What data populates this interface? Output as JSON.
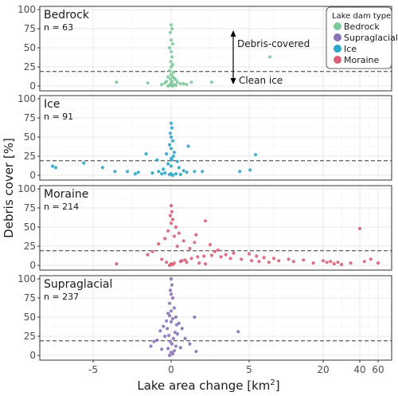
{
  "chart_data": {
    "type": "scatter",
    "xlabel": "Lake area change [km²]",
    "ylabel": "Debris cover [%]",
    "x_ticks": [
      -5,
      0,
      5,
      20,
      40,
      60
    ],
    "y_ticks": [
      0,
      25,
      50,
      75,
      100
    ],
    "ylim": [
      0,
      100
    ],
    "threshold": 19,
    "grid": true,
    "legend": {
      "title": "Lake dam type",
      "placement": "top-right",
      "items": [
        "Bedrock",
        "Supraglacial",
        "Ice",
        "Moraine"
      ]
    },
    "colors": {
      "Bedrock": "#7fc99a",
      "Supraglacial": "#8a73b8",
      "Ice": "#2ea7c8",
      "Moraine": "#d86078"
    },
    "annotation": {
      "upper": "Debris-covered",
      "lower": "Clean ice"
    },
    "panels": [
      {
        "name": "Bedrock",
        "n_label": "n = 63",
        "points": [
          [
            0,
            80
          ],
          [
            0.05,
            75
          ],
          [
            -0.05,
            70
          ],
          [
            0,
            60
          ],
          [
            0.1,
            55
          ],
          [
            -0.1,
            50
          ],
          [
            0,
            45
          ],
          [
            0.05,
            38
          ],
          [
            -0.02,
            32
          ],
          [
            0.1,
            28
          ],
          [
            0,
            25
          ],
          [
            -0.1,
            20
          ],
          [
            0.15,
            18
          ],
          [
            0,
            15
          ],
          [
            -0.2,
            12
          ],
          [
            0.2,
            10
          ],
          [
            0.3,
            8
          ],
          [
            -0.3,
            6
          ],
          [
            0.4,
            5
          ],
          [
            -0.4,
            4
          ],
          [
            0.6,
            3
          ],
          [
            -0.6,
            2
          ],
          [
            0.8,
            3
          ],
          [
            1.0,
            2
          ],
          [
            1.3,
            5
          ],
          [
            2.6,
            5
          ],
          [
            -3.5,
            5
          ],
          [
            -1.5,
            4
          ],
          [
            9.2,
            38
          ],
          [
            0,
            1
          ],
          [
            0.1,
            0
          ],
          [
            -0.1,
            1
          ],
          [
            0.2,
            2
          ],
          [
            0,
            4
          ],
          [
            0.05,
            6
          ],
          [
            -0.05,
            9
          ],
          [
            0.1,
            12
          ],
          [
            0.3,
            1
          ],
          [
            -0.2,
            0
          ]
        ]
      },
      {
        "name": "Ice",
        "n_label": "n = 91",
        "points": [
          [
            0,
            68
          ],
          [
            0.05,
            62
          ],
          [
            -0.05,
            55
          ],
          [
            0,
            50
          ],
          [
            0.1,
            45
          ],
          [
            -0.1,
            40
          ],
          [
            1.1,
            38
          ],
          [
            0,
            35
          ],
          [
            0.2,
            30
          ],
          [
            -0.3,
            28
          ],
          [
            -1.6,
            28
          ],
          [
            0.15,
            25
          ],
          [
            -0.9,
            20
          ],
          [
            0.4,
            18
          ],
          [
            -0.2,
            15
          ],
          [
            0,
            12
          ],
          [
            0.5,
            10
          ],
          [
            -0.5,
            8
          ],
          [
            0.8,
            6
          ],
          [
            -0.8,
            5
          ],
          [
            1.0,
            4
          ],
          [
            -1.2,
            3
          ],
          [
            1.5,
            5
          ],
          [
            2.0,
            5
          ],
          [
            -2.1,
            4
          ],
          [
            -2.3,
            2
          ],
          [
            -2.8,
            5
          ],
          [
            -3.6,
            5
          ],
          [
            -4.4,
            10
          ],
          [
            -5.6,
            16
          ],
          [
            -7.6,
            12
          ],
          [
            -7.4,
            10
          ],
          [
            4.4,
            5
          ],
          [
            5.2,
            7
          ],
          [
            6.3,
            27
          ],
          [
            0,
            2
          ],
          [
            0.1,
            0
          ],
          [
            -0.1,
            1
          ],
          [
            0.3,
            2
          ],
          [
            -0.4,
            3
          ],
          [
            0.6,
            1
          ],
          [
            -0.6,
            2
          ],
          [
            0,
            22
          ],
          [
            0.05,
            20
          ]
        ]
      },
      {
        "name": "Moraine",
        "n_label": "n = 214",
        "points": [
          [
            0,
            78
          ],
          [
            0.05,
            70
          ],
          [
            -0.05,
            65
          ],
          [
            0.1,
            60
          ],
          [
            2.2,
            58
          ],
          [
            0,
            55
          ],
          [
            0.3,
            50
          ],
          [
            -0.2,
            45
          ],
          [
            0.5,
            42
          ],
          [
            1.6,
            40
          ],
          [
            0.2,
            38
          ],
          [
            -0.4,
            35
          ],
          [
            0.8,
            32
          ],
          [
            1.5,
            30
          ],
          [
            -0.8,
            28
          ],
          [
            2.5,
            27
          ],
          [
            0.4,
            25
          ],
          [
            1.2,
            22
          ],
          [
            3.0,
            20
          ],
          [
            -1.2,
            18
          ],
          [
            2.8,
            18
          ],
          [
            4.0,
            16
          ],
          [
            5.0,
            15
          ],
          [
            -1.5,
            14
          ],
          [
            3.5,
            14
          ],
          [
            6.5,
            12
          ],
          [
            8.0,
            10
          ],
          [
            10.0,
            9
          ],
          [
            13.0,
            8
          ],
          [
            16.0,
            7
          ],
          [
            20.0,
            6
          ],
          [
            24.0,
            5
          ],
          [
            28.0,
            4
          ],
          [
            35.0,
            3
          ],
          [
            45.0,
            5
          ],
          [
            60.0,
            3
          ],
          [
            52.0,
            8
          ],
          [
            40.0,
            48
          ],
          [
            -3.5,
            2
          ],
          [
            -0.6,
            8
          ],
          [
            0.7,
            6
          ],
          [
            1.0,
            4
          ],
          [
            1.8,
            3
          ],
          [
            2.2,
            2
          ],
          [
            0,
            2
          ],
          [
            0.1,
            1
          ],
          [
            -0.1,
            0
          ],
          [
            0.2,
            3
          ],
          [
            -0.3,
            4
          ],
          [
            0.6,
            5
          ],
          [
            0.9,
            7
          ],
          [
            1.3,
            9
          ],
          [
            1.7,
            11
          ],
          [
            2.1,
            12
          ],
          [
            2.6,
            13
          ],
          [
            3.2,
            11
          ],
          [
            3.8,
            9
          ],
          [
            4.5,
            8
          ],
          [
            5.5,
            6
          ],
          [
            7.0,
            5
          ],
          [
            9.0,
            4
          ],
          [
            11.0,
            6
          ],
          [
            14.0,
            5
          ],
          [
            18.0,
            3
          ],
          [
            22.0,
            4
          ],
          [
            26.0,
            2
          ],
          [
            30.0,
            1
          ]
        ]
      },
      {
        "name": "Supraglacial",
        "n_label": "n = 237",
        "points": [
          [
            0,
            100
          ],
          [
            0.05,
            92
          ],
          [
            -0.05,
            85
          ],
          [
            0,
            80
          ],
          [
            0.1,
            75
          ],
          [
            -0.1,
            68
          ],
          [
            0.2,
            62
          ],
          [
            0,
            58
          ],
          [
            -0.2,
            55
          ],
          [
            0.3,
            50
          ],
          [
            1.5,
            50
          ],
          [
            -0.3,
            45
          ],
          [
            0.5,
            42
          ],
          [
            -0.5,
            38
          ],
          [
            0.7,
            35
          ],
          [
            -0.7,
            32
          ],
          [
            4.3,
            31
          ],
          [
            0.4,
            28
          ],
          [
            -0.4,
            25
          ],
          [
            0.9,
            22
          ],
          [
            -0.9,
            20
          ],
          [
            -1.1,
            18
          ],
          [
            1.2,
            15
          ],
          [
            -1.3,
            12
          ],
          [
            0.6,
            10
          ],
          [
            -0.6,
            8
          ],
          [
            1.6,
            5
          ],
          [
            0,
            4
          ],
          [
            0.1,
            2
          ],
          [
            -0.1,
            0
          ],
          [
            0.2,
            6
          ],
          [
            -0.2,
            9
          ],
          [
            0.3,
            12
          ],
          [
            0.05,
            15
          ],
          [
            -0.05,
            18
          ],
          [
            0.15,
            22
          ],
          [
            -0.15,
            26
          ],
          [
            0.25,
            30
          ],
          [
            -0.25,
            35
          ],
          [
            0.35,
            40
          ],
          [
            0,
            44
          ],
          [
            0.1,
            48
          ],
          [
            -0.1,
            52
          ]
        ]
      }
    ]
  }
}
